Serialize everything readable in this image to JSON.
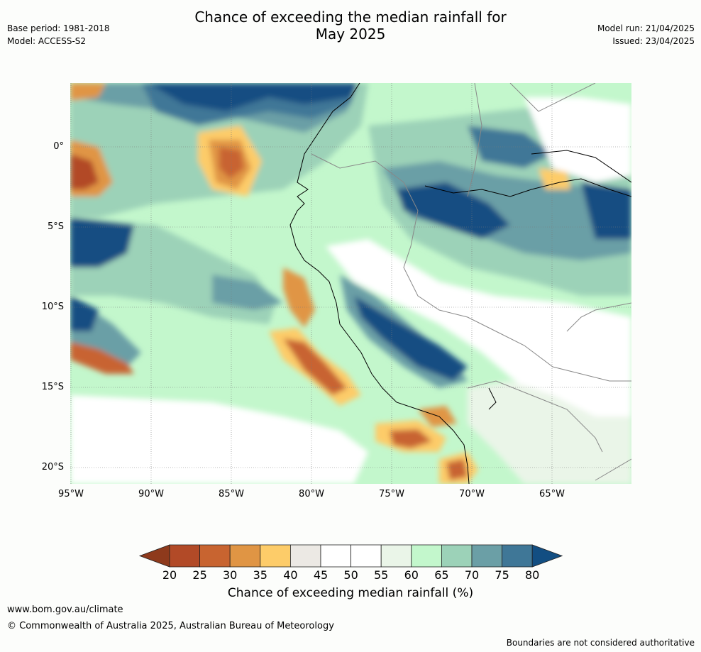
{
  "title_line1": "Chance of exceeding the median rainfall for",
  "title_line2": "May 2025",
  "base_period": "Base period: 1981-2018",
  "model": "Model: ACCESS-S2",
  "model_run": "Model run: 21/04/2025",
  "issued": "Issued: 23/04/2025",
  "map": {
    "lat_labels": [
      "0°",
      "5°S",
      "10°S",
      "15°S",
      "20°S"
    ],
    "lon_labels": [
      "95°W",
      "90°W",
      "85°W",
      "80°W",
      "75°W",
      "70°W",
      "65°W"
    ]
  },
  "colorbar": {
    "ticks": [
      "20",
      "25",
      "30",
      "35",
      "40",
      "45",
      "50",
      "55",
      "60",
      "65",
      "70",
      "75",
      "80"
    ],
    "colors": [
      "#8e3a1c",
      "#b24a27",
      "#c86430",
      "#e09544",
      "#fdcc69",
      "#ece9e4",
      "#ffffff",
      "#ffffff",
      "#eaf5e8",
      "#c3f7cc",
      "#9cd2b8",
      "#6b9fa6",
      "#3f7797",
      "#124e82"
    ],
    "label": "Chance of exceeding median rainfall (%)"
  },
  "footer": {
    "url": "www.bom.gov.au/climate",
    "copyright": "© Commonwealth of Australia 2025, Australian Bureau of Meteorology",
    "disclaimer": "Boundaries are not considered authoritative"
  }
}
